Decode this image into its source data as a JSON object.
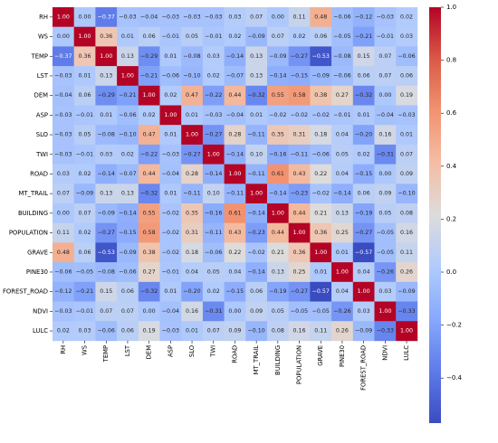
{
  "chart_data": {
    "type": "heatmap",
    "title": "",
    "xlabel": "",
    "ylabel": "",
    "variables": [
      "RH",
      "WS",
      "TEMP",
      "LST",
      "DEM",
      "ASP",
      "SLO",
      "TWI",
      "ROAD",
      "MT_TRAIL",
      "BUILDING",
      "POPULATION",
      "GRAVE",
      "PINE30",
      "FOREST_ROAD",
      "NDVI",
      "LULC"
    ],
    "matrix": [
      [
        1.0,
        0.0,
        -0.37,
        -0.03,
        -0.04,
        -0.03,
        -0.03,
        -0.03,
        0.03,
        0.07,
        0.0,
        0.11,
        0.48,
        -0.06,
        -0.12,
        -0.03,
        0.02
      ],
      [
        0.0,
        1.0,
        0.36,
        0.01,
        0.06,
        -0.01,
        0.05,
        -0.01,
        0.02,
        -0.09,
        0.07,
        0.02,
        0.06,
        -0.05,
        -0.21,
        -0.01,
        0.03
      ],
      [
        -0.37,
        0.36,
        1.0,
        0.13,
        -0.29,
        0.01,
        -0.08,
        0.03,
        -0.14,
        0.13,
        -0.09,
        -0.27,
        -0.53,
        -0.08,
        0.15,
        0.07,
        -0.06
      ],
      [
        -0.03,
        0.01,
        0.13,
        1.0,
        -0.21,
        -0.06,
        -0.1,
        0.02,
        -0.07,
        0.13,
        -0.14,
        -0.15,
        -0.09,
        -0.06,
        0.06,
        0.07,
        0.06
      ],
      [
        -0.04,
        0.06,
        -0.29,
        -0.21,
        1.0,
        0.02,
        0.47,
        -0.22,
        0.44,
        -0.32,
        0.55,
        0.58,
        0.38,
        0.27,
        -0.32,
        0.0,
        0.19
      ],
      [
        -0.03,
        -0.01,
        0.01,
        -0.06,
        0.02,
        1.0,
        0.01,
        -0.03,
        -0.04,
        0.01,
        -0.02,
        -0.02,
        -0.02,
        -0.01,
        0.01,
        -0.04,
        -0.03
      ],
      [
        -0.03,
        0.05,
        -0.08,
        -0.1,
        0.47,
        0.01,
        1.0,
        -0.27,
        0.28,
        -0.11,
        0.35,
        0.31,
        0.18,
        0.04,
        -0.2,
        0.16,
        0.01
      ],
      [
        -0.03,
        -0.01,
        0.03,
        0.02,
        -0.22,
        -0.03,
        -0.27,
        1.0,
        -0.14,
        0.1,
        -0.16,
        -0.11,
        -0.06,
        0.05,
        0.02,
        -0.31,
        0.07
      ],
      [
        0.03,
        0.02,
        -0.14,
        -0.07,
        0.44,
        -0.04,
        0.28,
        -0.14,
        1.0,
        -0.11,
        0.61,
        0.43,
        0.22,
        0.04,
        -0.15,
        0.0,
        0.09
      ],
      [
        0.07,
        -0.09,
        0.13,
        0.13,
        -0.32,
        0.01,
        -0.11,
        0.1,
        -0.11,
        1.0,
        -0.14,
        -0.23,
        -0.02,
        -0.14,
        0.06,
        0.09,
        -0.1
      ],
      [
        0.0,
        0.07,
        -0.09,
        -0.14,
        0.55,
        -0.02,
        0.35,
        -0.16,
        0.61,
        -0.14,
        1.0,
        0.44,
        0.21,
        0.13,
        -0.19,
        0.05,
        0.08
      ],
      [
        0.11,
        0.02,
        -0.27,
        -0.15,
        0.58,
        -0.02,
        0.31,
        -0.11,
        0.43,
        -0.23,
        0.44,
        1.0,
        0.36,
        0.25,
        -0.27,
        -0.05,
        0.16
      ],
      [
        0.48,
        0.06,
        -0.53,
        -0.09,
        0.38,
        -0.02,
        0.18,
        -0.06,
        0.22,
        -0.02,
        0.21,
        0.36,
        1.0,
        0.01,
        -0.57,
        -0.05,
        0.11
      ],
      [
        -0.06,
        -0.05,
        -0.08,
        -0.06,
        0.27,
        -0.01,
        0.04,
        0.05,
        0.04,
        -0.14,
        0.13,
        0.25,
        0.01,
        1.0,
        0.04,
        -0.26,
        0.26
      ],
      [
        -0.12,
        -0.21,
        0.15,
        0.06,
        -0.32,
        0.01,
        -0.2,
        0.02,
        -0.15,
        0.06,
        -0.19,
        -0.27,
        -0.57,
        0.04,
        1.0,
        0.03,
        -0.09
      ],
      [
        -0.03,
        -0.01,
        0.07,
        0.07,
        0.0,
        -0.04,
        0.16,
        -0.31,
        0.0,
        0.09,
        0.05,
        -0.05,
        -0.05,
        -0.26,
        0.03,
        1.0,
        -0.33
      ],
      [
        0.02,
        0.03,
        -0.06,
        0.06,
        0.19,
        -0.03,
        0.01,
        0.07,
        0.09,
        -0.1,
        0.08,
        0.16,
        0.11,
        0.26,
        -0.09,
        -0.33,
        1.0
      ]
    ],
    "colormap": "coolwarm",
    "vmin": -0.57,
    "vmax": 1.0,
    "colorbar": {
      "ticks": [
        -0.4,
        -0.2,
        0.0,
        0.2,
        0.4,
        0.6,
        0.8,
        1.0
      ],
      "tick_labels": [
        "−0.4",
        "−0.2",
        "0.0",
        "0.2",
        "0.4",
        "0.6",
        "0.8",
        "1.0"
      ],
      "placement": "right"
    },
    "grid": false,
    "value_labels": true
  }
}
